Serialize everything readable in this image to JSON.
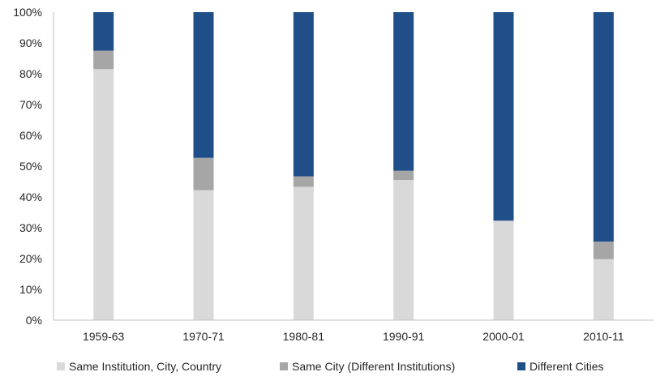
{
  "chart_data": {
    "type": "bar",
    "stacked": true,
    "percent_stacked": true,
    "categories": [
      "1959-63",
      "1970-71",
      "1980-81",
      "1990-91",
      "2000-01",
      "2010-11"
    ],
    "series": [
      {
        "name": "Same Institution, City, Country",
        "color": "#d9d9d9",
        "values": [
          81.5,
          42.2,
          43.3,
          45.5,
          32.3,
          19.8
        ]
      },
      {
        "name": "Same City (Different Institutions)",
        "color": "#a6a6a6",
        "values": [
          6.0,
          10.5,
          3.4,
          3.0,
          0.0,
          5.7
        ]
      },
      {
        "name": "Different Cities",
        "color": "#1f4e89",
        "values": [
          12.5,
          47.3,
          53.3,
          51.5,
          67.7,
          74.5
        ]
      }
    ],
    "y_ticks": [
      "0%",
      "10%",
      "20%",
      "30%",
      "40%",
      "50%",
      "60%",
      "70%",
      "80%",
      "90%",
      "100%"
    ],
    "ylim": [
      0,
      100
    ],
    "grid": false,
    "legend_position": "bottom"
  }
}
